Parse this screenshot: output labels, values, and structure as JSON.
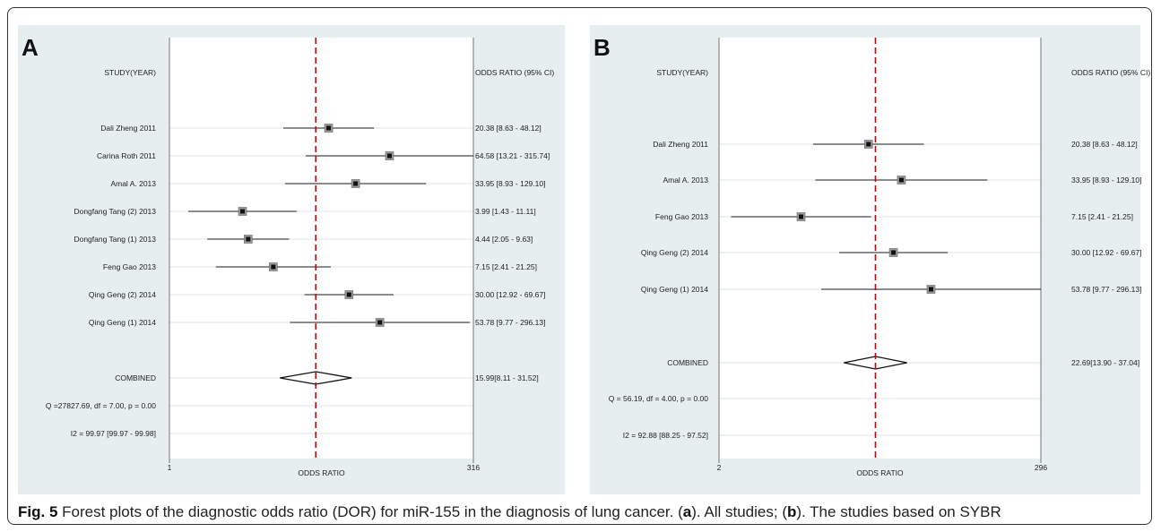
{
  "colors": {
    "panel_bg": "#e6eef0",
    "plot_bg": "#ffffff",
    "ref_line": "#cc0000",
    "marker": "#111111",
    "marker_box": "#999999"
  },
  "caption": {
    "fig_label": "Fig. 5",
    "pre": " Forest plots of the diagnostic odds ratio (DOR) for miR-155 in the diagnosis of lung cancer. (",
    "a": "a",
    "mid": "). All studies; (",
    "b": "b",
    "post": "). The studies based on SYBR"
  },
  "chart_data": [
    {
      "type": "forest",
      "panel": "A",
      "study_header": "STUDY(YEAR)",
      "or_header": "ODDS RATIO (95% CI)",
      "xlabel": "ODDS RATIO",
      "xscale": "log",
      "xlim": [
        1,
        316
      ],
      "xticks": [
        "1",
        "316"
      ],
      "reference_line": 15.99,
      "studies": [
        {
          "name": "Dali Zheng 2011",
          "or": 20.38,
          "lo": 8.63,
          "hi": 48.12,
          "text": "20.38 [8.63 - 48.12]"
        },
        {
          "name": "Carina Roth 2011",
          "or": 64.58,
          "lo": 13.21,
          "hi": 315.74,
          "text": "64.58 [13.21 - 315.74]"
        },
        {
          "name": "Amal A. 2013",
          "or": 33.95,
          "lo": 8.93,
          "hi": 129.1,
          "text": "33.95 [8.93 - 129.10]"
        },
        {
          "name": "Dongfang Tang (2) 2013",
          "or": 3.99,
          "lo": 1.43,
          "hi": 11.11,
          "text": "3.99 [1.43 - 11.11]"
        },
        {
          "name": "Dongfang Tang (1) 2013",
          "or": 4.44,
          "lo": 2.05,
          "hi": 9.63,
          "text": "4.44 [2.05 - 9.63]"
        },
        {
          "name": "Feng Gao 2013",
          "or": 7.15,
          "lo": 2.41,
          "hi": 21.25,
          "text": "7.15 [2.41 - 21.25]"
        },
        {
          "name": "Qing Geng (2) 2014",
          "or": 30.0,
          "lo": 12.92,
          "hi": 69.67,
          "text": "30.00 [12.92 - 69.67]"
        },
        {
          "name": "Qing Geng (1) 2014",
          "or": 53.78,
          "lo": 9.77,
          "hi": 296.13,
          "text": "53.78 [9.77 - 296.13]"
        }
      ],
      "combined": {
        "name": "COMBINED",
        "or": 15.99,
        "lo": 8.11,
        "hi": 31.52,
        "text": "15.99[8.11 - 31.52]"
      },
      "q_text": "Q =27827.69, df = 7.00, p =  0.00",
      "i2_text": "I2 = 99.97 [99.97 - 99.98]"
    },
    {
      "type": "forest",
      "panel": "B",
      "study_header": "STUDY(YEAR)",
      "or_header": "ODDS RATIO (95% CI)",
      "xlabel": "ODDS RATIO",
      "xscale": "log",
      "xlim": [
        2,
        296
      ],
      "xticks": [
        "2",
        "296"
      ],
      "reference_line": 22.69,
      "studies": [
        {
          "name": "Dali Zheng 2011",
          "or": 20.38,
          "lo": 8.63,
          "hi": 48.12,
          "text": "20.38 [8.63 - 48.12]"
        },
        {
          "name": "Amal A. 2013",
          "or": 33.95,
          "lo": 8.93,
          "hi": 129.1,
          "text": "33.95 [8.93 - 129.10]"
        },
        {
          "name": "Feng Gao 2013",
          "or": 7.15,
          "lo": 2.41,
          "hi": 21.25,
          "text": "7.15 [2.41 - 21.25]"
        },
        {
          "name": "Qing Geng (2) 2014",
          "or": 30.0,
          "lo": 12.92,
          "hi": 69.67,
          "text": "30.00 [12.92 - 69.67]"
        },
        {
          "name": "Qing Geng (1) 2014",
          "or": 53.78,
          "lo": 9.77,
          "hi": 296.13,
          "text": "53.78 [9.77 - 296.13]"
        }
      ],
      "combined": {
        "name": "COMBINED",
        "or": 22.69,
        "lo": 13.9,
        "hi": 37.04,
        "text": "22.69[13.90 - 37.04]"
      },
      "q_text": "Q = 56.19, df = 4.00, p =  0.00",
      "i2_text": "I2 = 92.88 [88.25 - 97.52]"
    }
  ]
}
